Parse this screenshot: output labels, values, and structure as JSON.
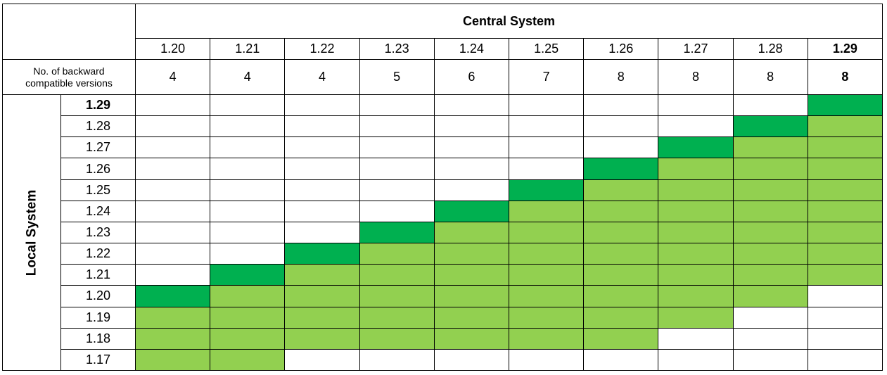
{
  "header": {
    "title": "Central System",
    "versions": [
      "1.20",
      "1.21",
      "1.22",
      "1.23",
      "1.24",
      "1.25",
      "1.26",
      "1.27",
      "1.28",
      "1.29"
    ]
  },
  "backward": {
    "label": "No. of backward compatible versions",
    "counts": [
      4,
      4,
      4,
      5,
      6,
      7,
      8,
      8,
      8,
      8
    ]
  },
  "local": {
    "title": "Local System",
    "versions": [
      "1.29",
      "1.28",
      "1.27",
      "1.26",
      "1.25",
      "1.24",
      "1.23",
      "1.22",
      "1.21",
      "1.20",
      "1.19",
      "1.18",
      "1.17"
    ]
  }
}
